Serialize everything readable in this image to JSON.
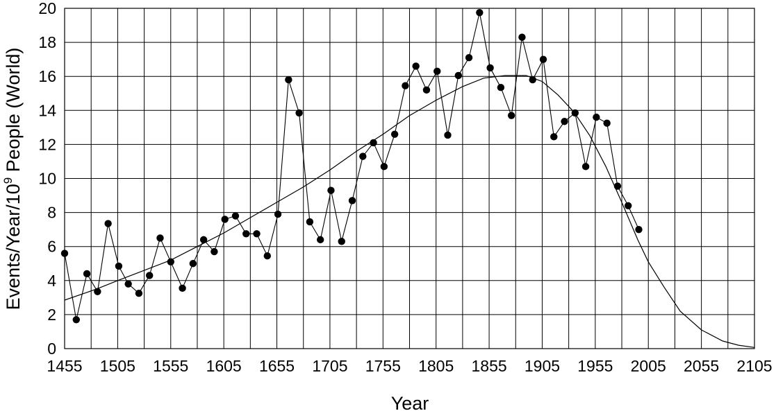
{
  "chart_data": {
    "type": "line",
    "title": "",
    "xlabel": "Year",
    "ylabel_main": "Events/Year/10",
    "ylabel_sup": "9",
    "ylabel_tail": " People (World)",
    "xlim": [
      1455,
      2105
    ],
    "ylim": [
      0,
      20
    ],
    "x_ticks": [
      1455,
      1505,
      1555,
      1605,
      1655,
      1705,
      1755,
      1805,
      1855,
      1905,
      1955,
      2005,
      2055,
      2105
    ],
    "y_ticks": [
      0,
      2,
      4,
      6,
      8,
      10,
      12,
      14,
      16,
      18,
      20
    ],
    "grid": true,
    "series": [
      {
        "x": [
          1455,
          1466,
          1476,
          1486,
          1496,
          1506,
          1515,
          1525,
          1535,
          1545,
          1555,
          1566,
          1576,
          1586,
          1596,
          1606,
          1616,
          1626,
          1636,
          1646,
          1656,
          1666,
          1676,
          1686,
          1696,
          1706,
          1716,
          1726,
          1736,
          1746,
          1756,
          1766,
          1776,
          1786,
          1796,
          1806,
          1816,
          1826,
          1836,
          1846,
          1856,
          1866,
          1876,
          1886,
          1896,
          1906,
          1916,
          1926,
          1936,
          1946,
          1956,
          1966,
          1976,
          1986,
          1996
        ],
        "y": [
          5.6,
          1.7,
          4.4,
          3.35,
          7.35,
          4.85,
          3.8,
          3.25,
          4.3,
          6.5,
          5.1,
          3.55,
          5.0,
          6.4,
          5.7,
          7.6,
          7.8,
          6.75,
          6.75,
          5.45,
          7.9,
          15.8,
          13.85,
          7.45,
          6.4,
          9.3,
          6.3,
          8.7,
          11.3,
          12.1,
          10.7,
          12.6,
          15.45,
          16.6,
          15.2,
          16.3,
          12.55,
          16.05,
          17.1,
          19.75,
          16.5,
          15.35,
          13.7,
          18.3,
          15.8,
          17.0,
          12.45,
          13.35,
          13.85,
          10.7,
          13.6,
          13.25,
          9.55,
          8.4,
          7.0
        ]
      },
      {
        "x": [
          1455,
          1485,
          1505,
          1530,
          1555,
          1580,
          1605,
          1630,
          1655,
          1680,
          1705,
          1730,
          1755,
          1780,
          1805,
          1830,
          1850,
          1870,
          1890,
          1905,
          1920,
          1935,
          1950,
          1965,
          1980,
          1995,
          2005,
          2020,
          2035,
          2055,
          2075,
          2090,
          2105
        ],
        "y": [
          2.85,
          3.5,
          4.0,
          4.6,
          5.2,
          6.0,
          6.8,
          7.7,
          8.6,
          9.5,
          10.5,
          11.6,
          12.6,
          13.7,
          14.6,
          15.4,
          15.9,
          16.05,
          16.05,
          15.7,
          14.9,
          13.9,
          12.5,
          10.7,
          8.6,
          6.4,
          5.1,
          3.6,
          2.2,
          1.1,
          0.45,
          0.2,
          0.07
        ]
      }
    ]
  }
}
